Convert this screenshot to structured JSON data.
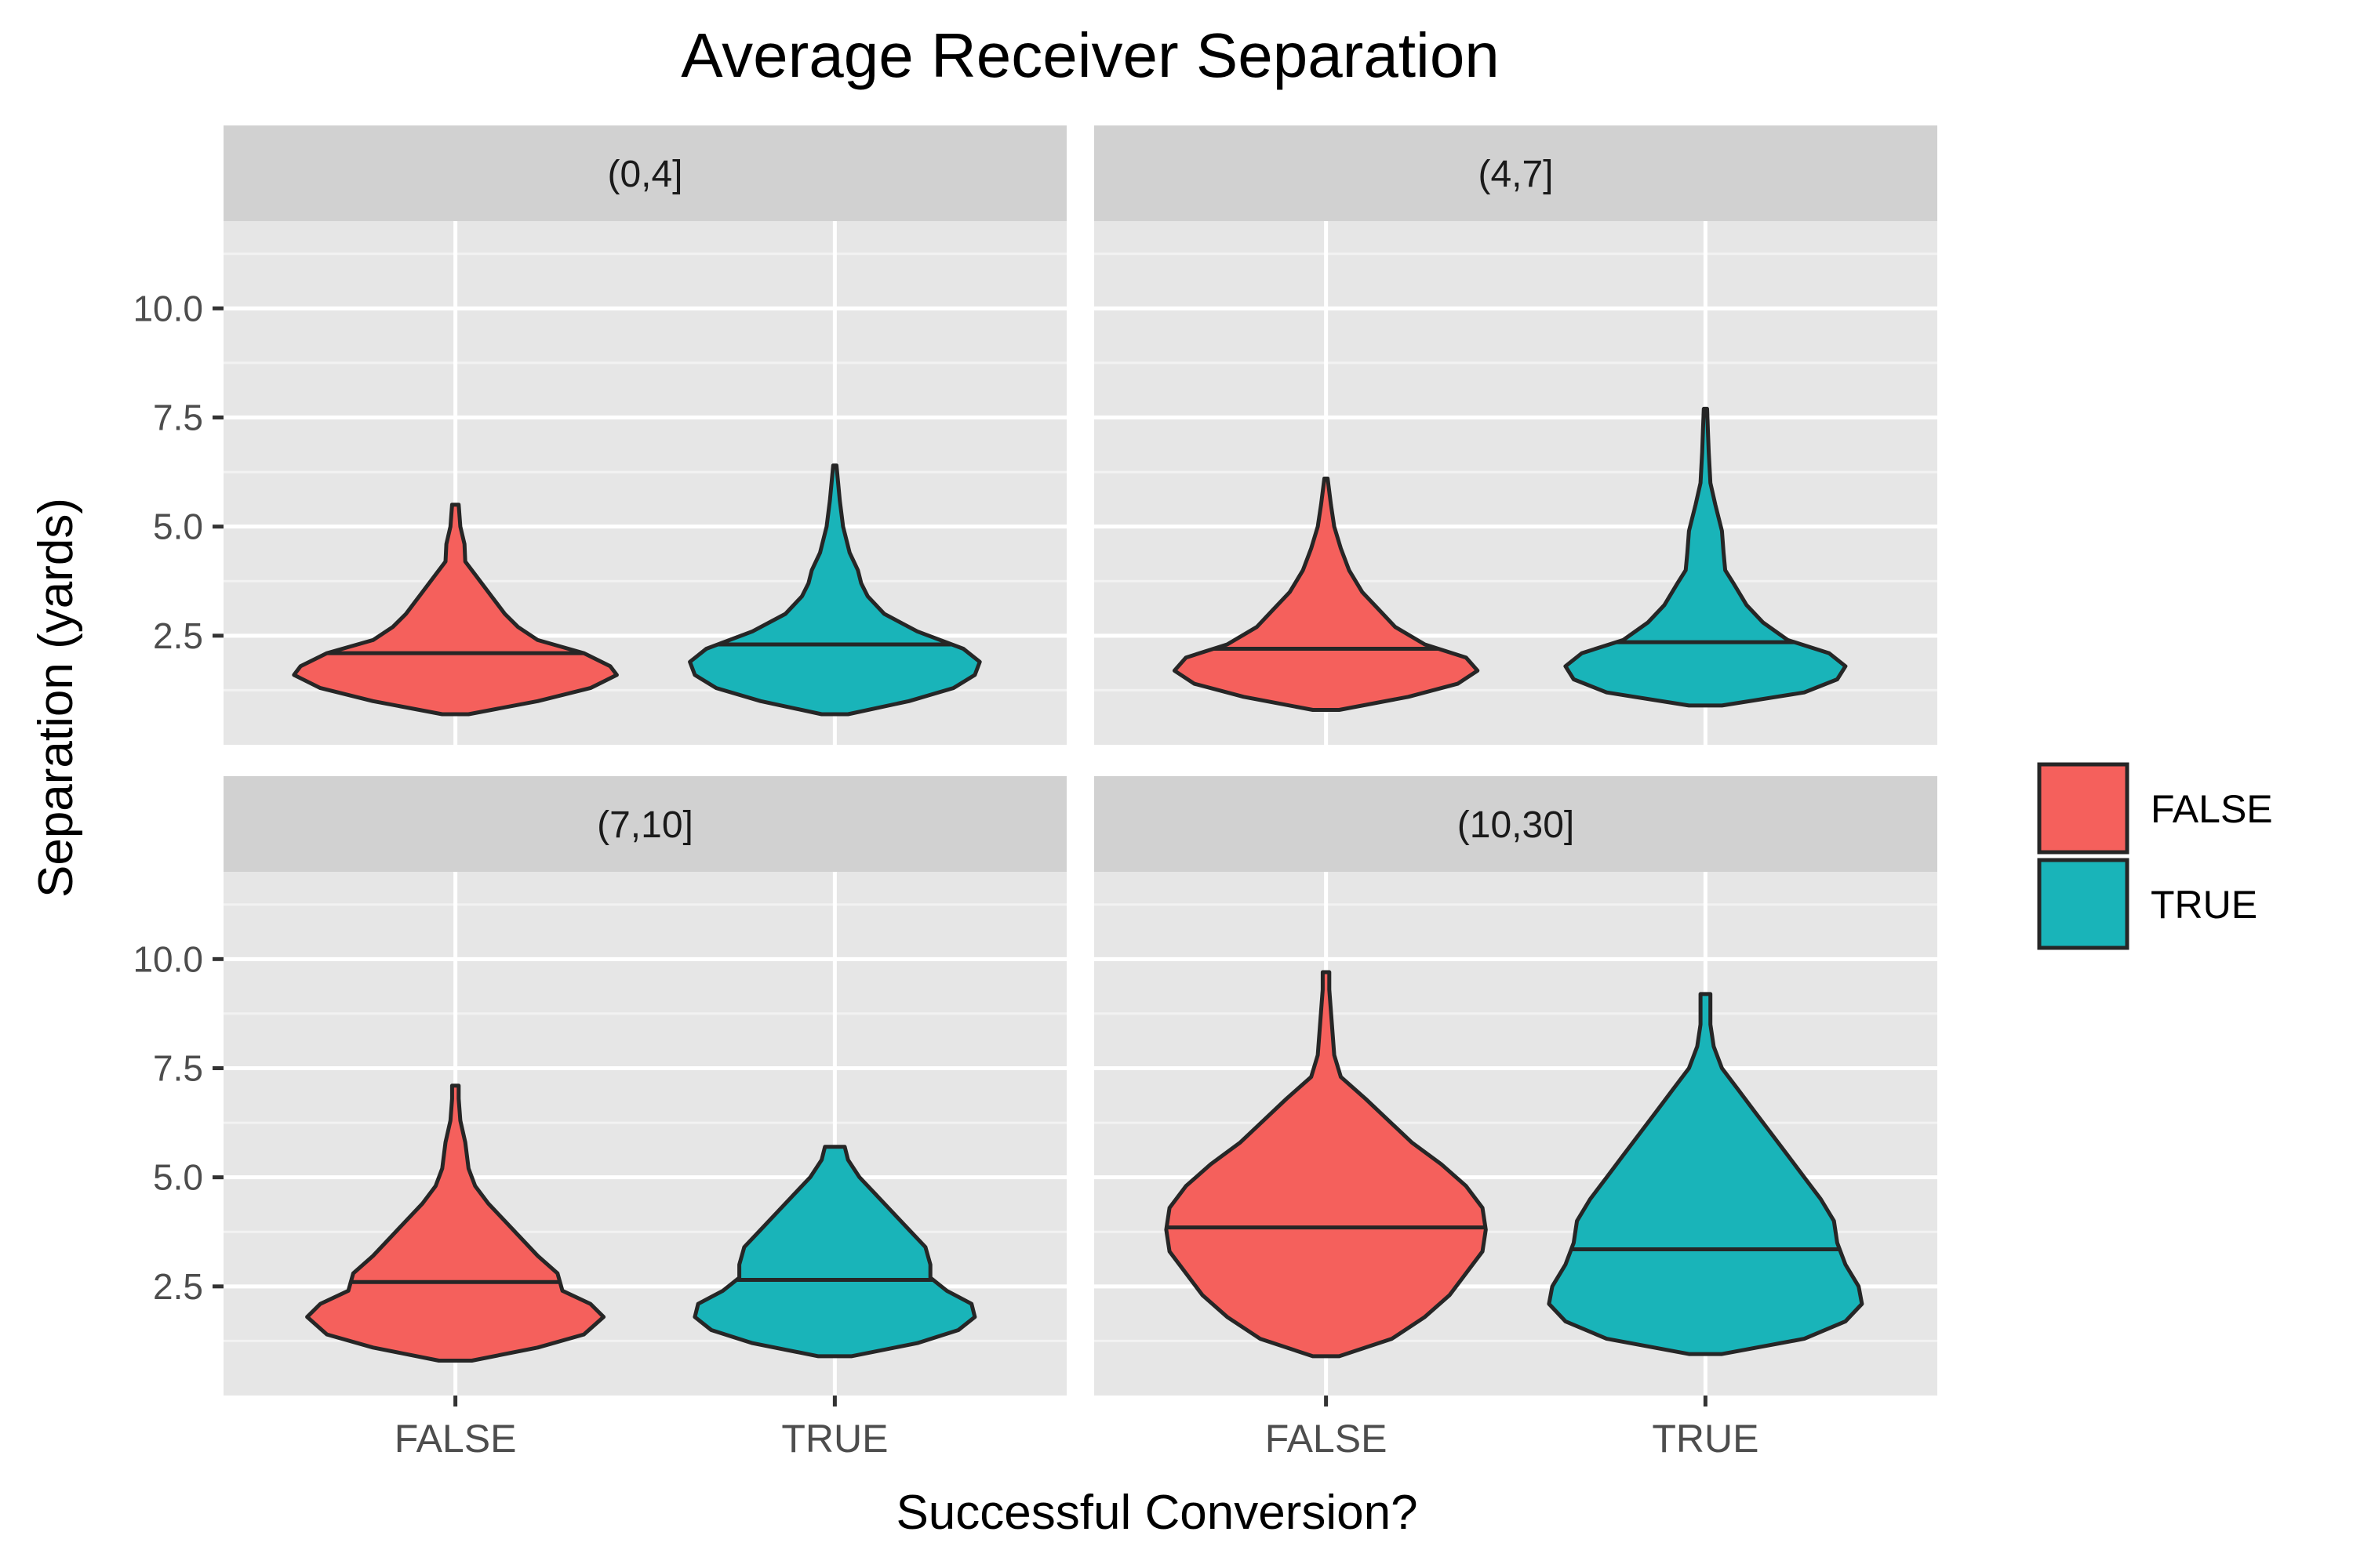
{
  "chart_data": {
    "type": "violin",
    "title": "Average Receiver Separation",
    "xlabel": "Successful Conversion?",
    "ylabel": "Separation (yards)",
    "categories": [
      "FALSE",
      "TRUE"
    ],
    "y_ticks": [
      2.5,
      5.0,
      7.5,
      10.0
    ],
    "y_tick_labels": [
      "2.5",
      "5.0",
      "7.5",
      "10.0"
    ],
    "ylim": [
      0.0,
      12.0
    ],
    "grid": true,
    "legend": {
      "position": "right",
      "title": "",
      "entries": [
        {
          "label": "FALSE",
          "color": "#F5605C"
        },
        {
          "label": "TRUE",
          "color": "#19B4B9"
        }
      ]
    },
    "colors": {
      "FALSE": "#F5605C",
      "TRUE": "#19B4B9",
      "panel_bg": "#E6E6E6",
      "strip_bg": "#D1D1D1",
      "outline": "#262626"
    },
    "facets": [
      {
        "label": "(0,4]",
        "violins": [
          {
            "category": "FALSE",
            "min": 0.7,
            "max": 5.5,
            "median": 2.1,
            "profile": [
              [
                0.7,
                0.08
              ],
              [
                1.0,
                0.5
              ],
              [
                1.3,
                0.82
              ],
              [
                1.6,
                0.98
              ],
              [
                1.8,
                0.94
              ],
              [
                2.1,
                0.78
              ],
              [
                2.4,
                0.5
              ],
              [
                2.7,
                0.38
              ],
              [
                3.0,
                0.3
              ],
              [
                3.4,
                0.22
              ],
              [
                3.9,
                0.12
              ],
              [
                4.2,
                0.06
              ],
              [
                4.6,
                0.055
              ],
              [
                5.0,
                0.03
              ],
              [
                5.5,
                0.02
              ]
            ]
          },
          {
            "category": "TRUE",
            "min": 0.7,
            "max": 6.4,
            "median": 2.3,
            "profile": [
              [
                0.7,
                0.08
              ],
              [
                1.0,
                0.45
              ],
              [
                1.3,
                0.72
              ],
              [
                1.6,
                0.85
              ],
              [
                1.9,
                0.88
              ],
              [
                2.2,
                0.78
              ],
              [
                2.6,
                0.5
              ],
              [
                3.0,
                0.3
              ],
              [
                3.4,
                0.2
              ],
              [
                3.7,
                0.16
              ],
              [
                4.0,
                0.14
              ],
              [
                4.4,
                0.09
              ],
              [
                5.0,
                0.05
              ],
              [
                5.6,
                0.03
              ],
              [
                6.0,
                0.02
              ],
              [
                6.4,
                0.01
              ]
            ]
          }
        ]
      },
      {
        "label": "(4,7]",
        "violins": [
          {
            "category": "FALSE",
            "min": 0.8,
            "max": 6.1,
            "median": 2.2,
            "profile": [
              [
                0.8,
                0.08
              ],
              [
                1.1,
                0.5
              ],
              [
                1.4,
                0.8
              ],
              [
                1.7,
                0.92
              ],
              [
                2.0,
                0.85
              ],
              [
                2.3,
                0.6
              ],
              [
                2.7,
                0.42
              ],
              [
                3.1,
                0.32
              ],
              [
                3.5,
                0.22
              ],
              [
                4.0,
                0.14
              ],
              [
                4.5,
                0.09
              ],
              [
                5.0,
                0.05
              ],
              [
                5.5,
                0.03
              ],
              [
                6.1,
                0.01
              ]
            ]
          },
          {
            "category": "TRUE",
            "min": 0.9,
            "max": 7.7,
            "median": 2.35,
            "profile": [
              [
                0.9,
                0.1
              ],
              [
                1.2,
                0.6
              ],
              [
                1.5,
                0.8
              ],
              [
                1.8,
                0.85
              ],
              [
                2.1,
                0.75
              ],
              [
                2.4,
                0.5
              ],
              [
                2.8,
                0.35
              ],
              [
                3.2,
                0.25
              ],
              [
                3.7,
                0.17
              ],
              [
                4.0,
                0.12
              ],
              [
                4.4,
                0.11
              ],
              [
                4.9,
                0.1
              ],
              [
                5.5,
                0.06
              ],
              [
                6.0,
                0.03
              ],
              [
                6.7,
                0.02
              ],
              [
                7.2,
                0.015
              ],
              [
                7.7,
                0.01
              ]
            ]
          }
        ]
      },
      {
        "label": "(7,10]",
        "violins": [
          {
            "category": "FALSE",
            "min": 0.8,
            "max": 7.1,
            "median": 2.6,
            "profile": [
              [
                0.8,
                0.1
              ],
              [
                1.1,
                0.5
              ],
              [
                1.4,
                0.78
              ],
              [
                1.8,
                0.9
              ],
              [
                2.1,
                0.82
              ],
              [
                2.4,
                0.65
              ],
              [
                2.8,
                0.62
              ],
              [
                3.2,
                0.5
              ],
              [
                3.6,
                0.4
              ],
              [
                4.0,
                0.3
              ],
              [
                4.4,
                0.2
              ],
              [
                4.8,
                0.12
              ],
              [
                5.2,
                0.08
              ],
              [
                5.8,
                0.06
              ],
              [
                6.3,
                0.03
              ],
              [
                6.8,
                0.02
              ],
              [
                7.1,
                0.02
              ]
            ]
          },
          {
            "category": "TRUE",
            "min": 0.9,
            "max": 5.7,
            "median": 2.65,
            "profile": [
              [
                0.9,
                0.1
              ],
              [
                1.2,
                0.5
              ],
              [
                1.5,
                0.75
              ],
              [
                1.8,
                0.85
              ],
              [
                2.1,
                0.83
              ],
              [
                2.4,
                0.68
              ],
              [
                2.7,
                0.58
              ],
              [
                3.0,
                0.58
              ],
              [
                3.4,
                0.55
              ],
              [
                3.8,
                0.45
              ],
              [
                4.2,
                0.35
              ],
              [
                4.6,
                0.25
              ],
              [
                5.0,
                0.15
              ],
              [
                5.4,
                0.08
              ],
              [
                5.7,
                0.06
              ]
            ]
          }
        ]
      },
      {
        "label": "(10,30]",
        "violins": [
          {
            "category": "FALSE",
            "min": 0.9,
            "max": 9.7,
            "median": 3.85,
            "profile": [
              [
                0.9,
                0.08
              ],
              [
                1.3,
                0.4
              ],
              [
                1.8,
                0.6
              ],
              [
                2.3,
                0.75
              ],
              [
                2.8,
                0.85
              ],
              [
                3.3,
                0.95
              ],
              [
                3.8,
                0.97
              ],
              [
                4.3,
                0.95
              ],
              [
                4.8,
                0.85
              ],
              [
                5.3,
                0.7
              ],
              [
                5.8,
                0.52
              ],
              [
                6.3,
                0.38
              ],
              [
                6.8,
                0.24
              ],
              [
                7.3,
                0.09
              ],
              [
                7.8,
                0.05
              ],
              [
                8.3,
                0.04
              ],
              [
                8.8,
                0.03
              ],
              [
                9.3,
                0.02
              ],
              [
                9.7,
                0.02
              ]
            ]
          },
          {
            "category": "TRUE",
            "min": 0.95,
            "max": 9.2,
            "median": 3.35,
            "profile": [
              [
                0.95,
                0.1
              ],
              [
                1.3,
                0.6
              ],
              [
                1.7,
                0.85
              ],
              [
                2.1,
                0.95
              ],
              [
                2.5,
                0.93
              ],
              [
                3.0,
                0.85
              ],
              [
                3.5,
                0.8
              ],
              [
                4.0,
                0.78
              ],
              [
                4.5,
                0.7
              ],
              [
                5.0,
                0.6
              ],
              [
                5.5,
                0.5
              ],
              [
                6.0,
                0.4
              ],
              [
                6.5,
                0.3
              ],
              [
                7.0,
                0.2
              ],
              [
                7.5,
                0.1
              ],
              [
                8.0,
                0.05
              ],
              [
                8.5,
                0.03
              ],
              [
                8.8,
                0.03
              ],
              [
                9.2,
                0.03
              ]
            ]
          }
        ]
      }
    ]
  }
}
